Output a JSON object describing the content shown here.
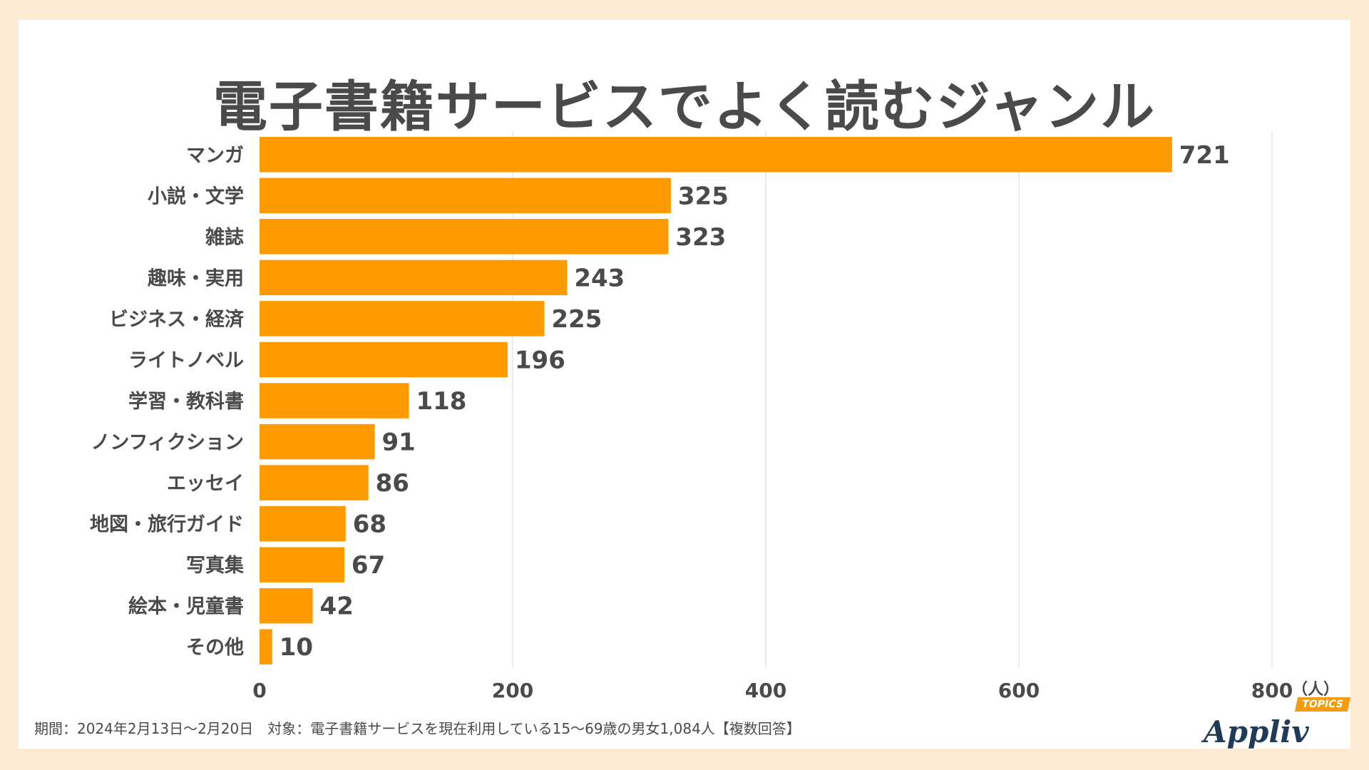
{
  "chart_data": {
    "type": "bar",
    "orientation": "horizontal",
    "title": "電子書籍サービスでよく読むジャンル",
    "categories": [
      "マンガ",
      "小説・文学",
      "雑誌",
      "趣味・実用",
      "ビジネス・経済",
      "ライトノベル",
      "学習・教科書",
      "ノンフィクション",
      "エッセイ",
      "地図・旅行ガイド",
      "写真集",
      "絵本・児童書",
      "その他"
    ],
    "values": [
      721,
      325,
      323,
      243,
      225,
      196,
      118,
      91,
      86,
      68,
      67,
      42,
      10
    ],
    "xlim": [
      0,
      800
    ],
    "xticks": [
      0,
      200,
      400,
      600,
      800
    ],
    "unit": "（人）",
    "bar_color": "#ff9a00",
    "grid": true
  },
  "footnote": "期間：2024年2月13日～2月20日　対象：電子書籍サービスを現在利用している15～69歳の男女1,084人【複数回答】",
  "logo": {
    "name": "Appliv",
    "badge": "TOPICS"
  },
  "colors": {
    "background": "#fdebd3",
    "card": "#ffffff",
    "text": "#4a4a4a",
    "grid": "#e6e6e6"
  }
}
